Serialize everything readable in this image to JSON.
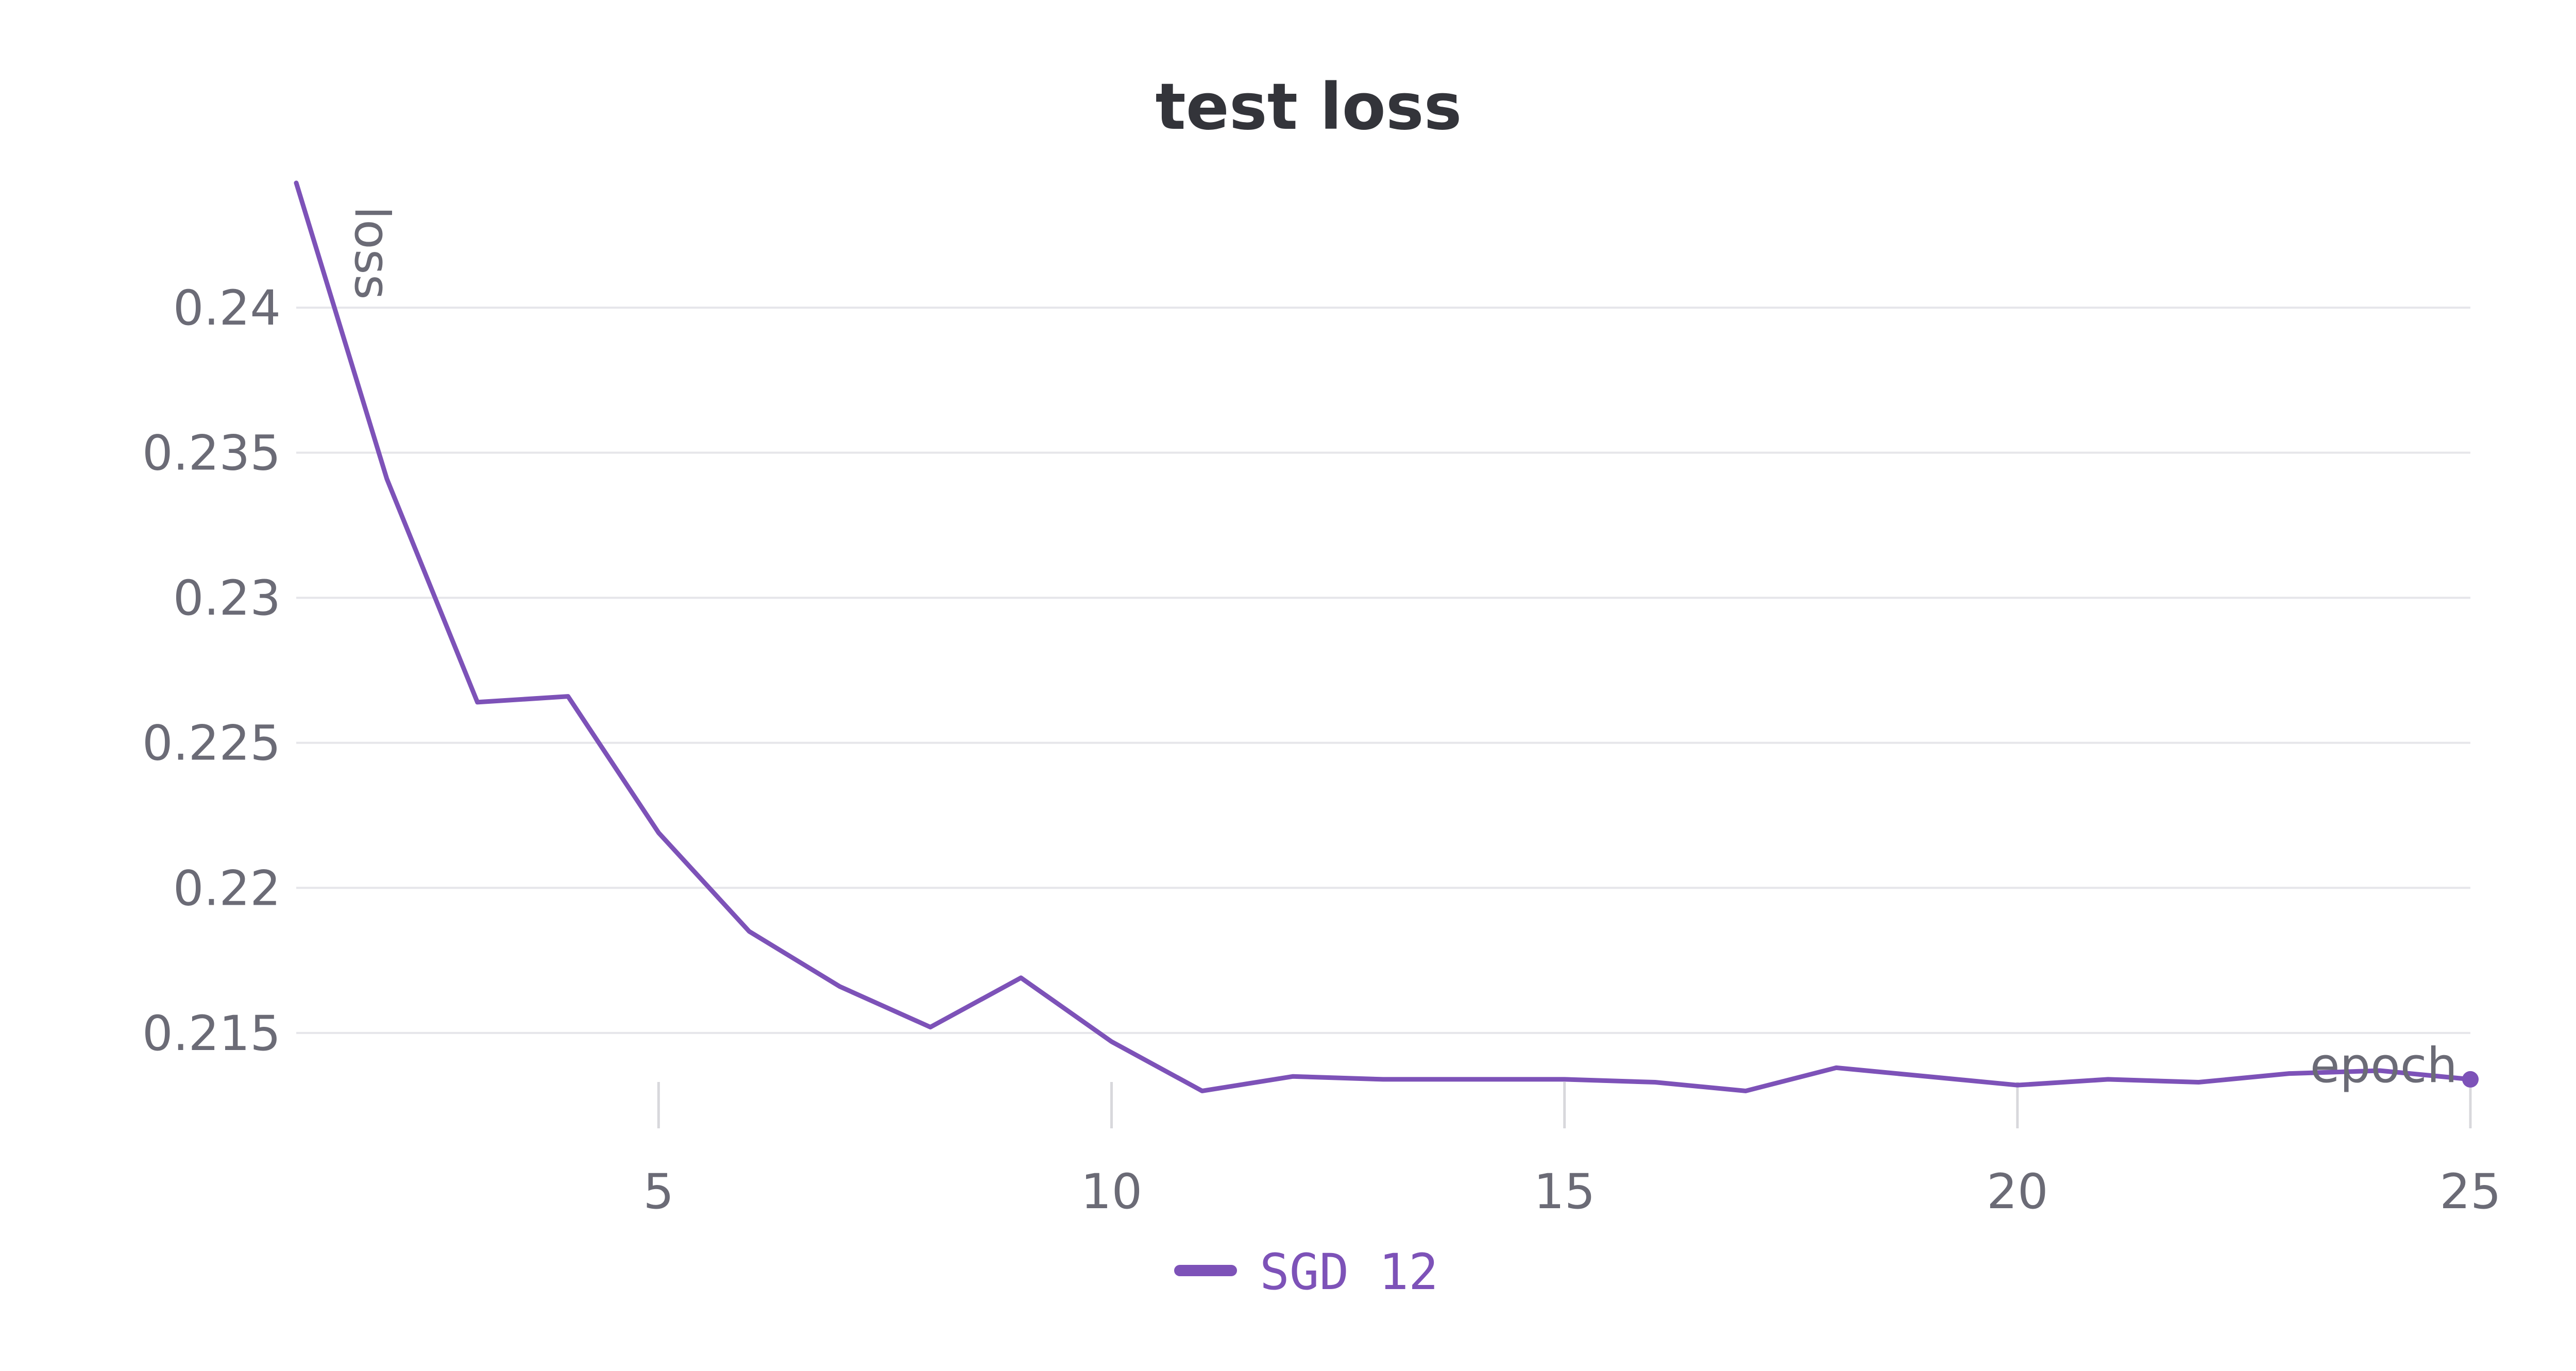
{
  "colors": {
    "series": "#7d52b8",
    "title": "#33343a",
    "tick": "#6b6b76",
    "grid": "#e6e6ea",
    "xtick_mark": "#d8d8dc"
  },
  "chart_data": {
    "type": "line",
    "title": "test loss",
    "xlabel": "epoch",
    "ylabel": "loss",
    "xlim": [
      1,
      25
    ],
    "ylim": [
      0.2118,
      0.2443
    ],
    "x_ticks": [
      5,
      10,
      15,
      20,
      25
    ],
    "y_ticks": [
      0.215,
      0.22,
      0.225,
      0.23,
      0.235,
      0.24
    ],
    "x_tick_labels": [
      "5",
      "10",
      "15",
      "20",
      "25"
    ],
    "y_tick_labels": [
      "0.215",
      "0.22",
      "0.225",
      "0.23",
      "0.235",
      "0.24"
    ],
    "grid": "horizontal",
    "legend_position": "bottom-center",
    "series": [
      {
        "name": "SGD 12",
        "x": [
          1,
          2,
          3,
          4,
          5,
          6,
          7,
          8,
          9,
          10,
          11,
          12,
          13,
          14,
          15,
          16,
          17,
          18,
          19,
          20,
          21,
          22,
          23,
          24,
          25
        ],
        "values": [
          0.2443,
          0.2341,
          0.2264,
          0.2266,
          0.2219,
          0.2185,
          0.2166,
          0.2152,
          0.2169,
          0.2147,
          0.213,
          0.2135,
          0.2134,
          0.2134,
          0.2134,
          0.2133,
          0.213,
          0.2138,
          0.2135,
          0.2132,
          0.2134,
          0.2133,
          0.2136,
          0.2137,
          0.2134
        ]
      }
    ]
  }
}
